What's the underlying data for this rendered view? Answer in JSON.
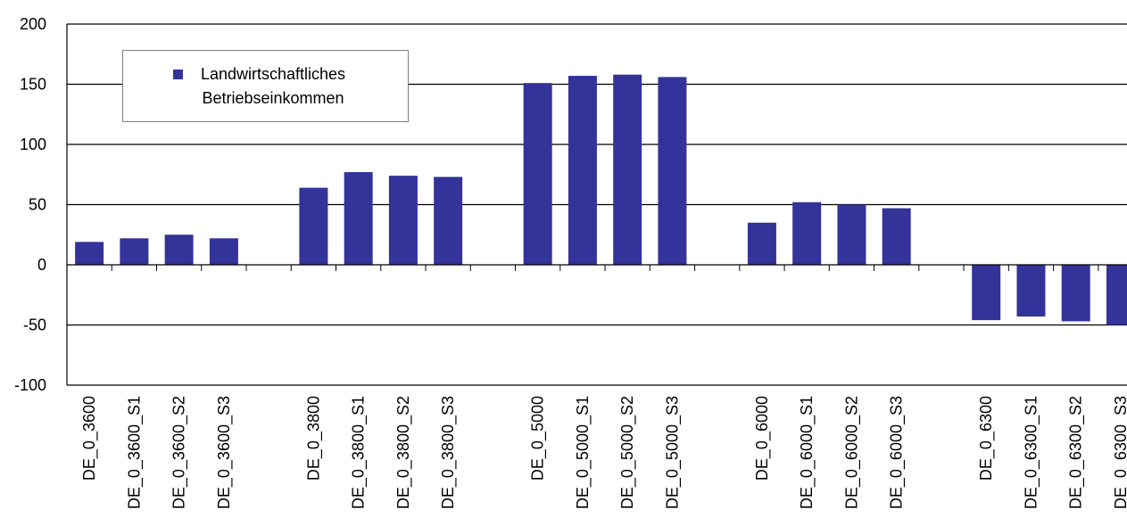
{
  "chart_data": {
    "type": "bar",
    "categories": [
      "DE_0_3600",
      "DE_0_3600_S1",
      "DE_0_3600_S2",
      "DE_0_3600_S3",
      "",
      "DE_0_3800",
      "DE_0_3800_S1",
      "DE_0_3800_S2",
      "DE_0_3800_S3",
      "",
      "DE_0_5000",
      "DE_0_5000_S1",
      "DE_0_5000_S2",
      "DE_0_5000_S3",
      "",
      "DE_0_6000",
      "DE_0_6000_S1",
      "DE_0_6000_S2",
      "DE_0_6000_S3",
      "",
      "DE_0_6300",
      "DE_0_6300_S1",
      "DE_0_6300_S2",
      "DE_0_6300_S3"
    ],
    "series": [
      {
        "name": "Landwirtschaftliches Betriebseinkommen",
        "color": "#333399",
        "values": [
          19,
          22,
          25,
          22,
          null,
          64,
          77,
          74,
          73,
          null,
          151,
          157,
          158,
          156,
          null,
          35,
          52,
          50,
          47,
          null,
          -46,
          -43,
          -47,
          -50
        ]
      }
    ],
    "ylim": [
      -100,
      200
    ],
    "yticks": [
      200,
      150,
      100,
      50,
      0,
      -50,
      -100
    ],
    "grid": true,
    "legend": "top-left",
    "title": "",
    "xlabel": "",
    "ylabel": ""
  }
}
